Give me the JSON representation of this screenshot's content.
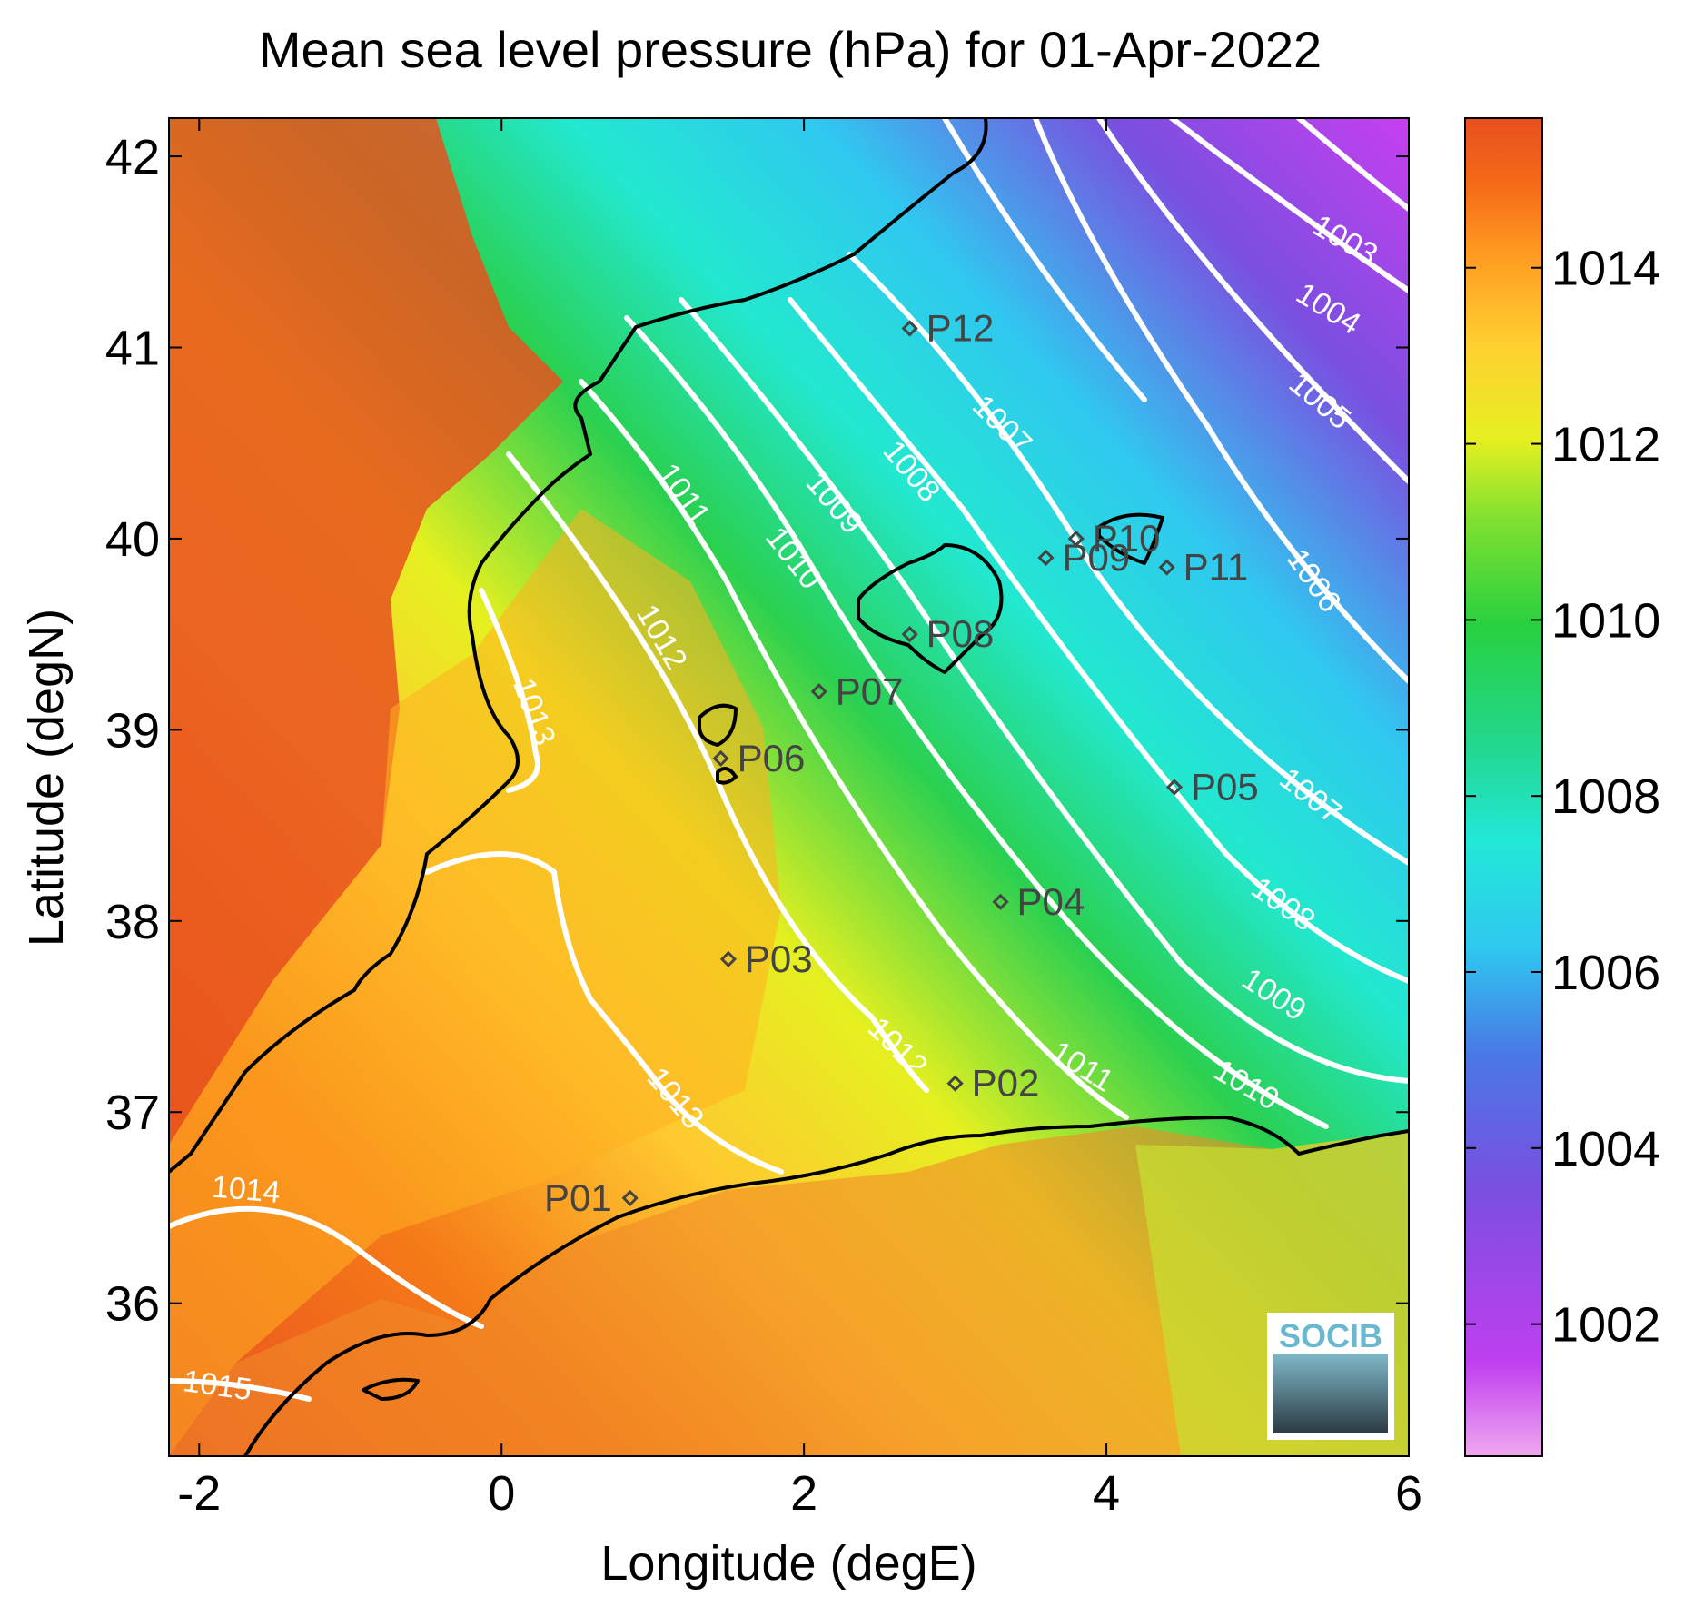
{
  "title": "Mean sea level pressure (hPa) for 01-Apr-2022",
  "xlabel": "Longitude (degE)",
  "ylabel": "Latitude (degN)",
  "logo_text": "SOCIB",
  "x_ticks": [
    -2,
    0,
    2,
    4,
    6
  ],
  "y_ticks": [
    36,
    37,
    38,
    39,
    40,
    41,
    42
  ],
  "colorbar_ticks": [
    1002,
    1004,
    1006,
    1008,
    1010,
    1012,
    1014
  ],
  "xlim": [
    -2.2,
    6.0
  ],
  "ylim": [
    35.2,
    42.2
  ],
  "colorbar_range": [
    1000.5,
    1015.7
  ],
  "colorbar_stops": [
    "#f0a8f0",
    "#c03ff0",
    "#7a4fe0",
    "#4a78e6",
    "#2fc8f0",
    "#22e8d8",
    "#22d890",
    "#28d040",
    "#80e030",
    "#e6f020",
    "#ffd030",
    "#ff9a20",
    "#f56a18",
    "#e85020"
  ],
  "contour_labels": [
    "1003",
    "1004",
    "1005",
    "1006",
    "1007",
    "1008",
    "1009",
    "1010",
    "1011",
    "1012",
    "1013",
    "1014",
    "1015"
  ],
  "stations": [
    {
      "name": "P01",
      "lon": 0.85,
      "lat": 36.55
    },
    {
      "name": "P02",
      "lon": 3.0,
      "lat": 37.15
    },
    {
      "name": "P03",
      "lon": 1.5,
      "lat": 37.8
    },
    {
      "name": "P04",
      "lon": 3.3,
      "lat": 38.1
    },
    {
      "name": "P05",
      "lon": 4.45,
      "lat": 38.7
    },
    {
      "name": "P06",
      "lon": 1.45,
      "lat": 38.85
    },
    {
      "name": "P07",
      "lon": 2.1,
      "lat": 39.2
    },
    {
      "name": "P08",
      "lon": 2.7,
      "lat": 39.5
    },
    {
      "name": "P09",
      "lon": 3.6,
      "lat": 39.9
    },
    {
      "name": "P10",
      "lon": 3.8,
      "lat": 40.0
    },
    {
      "name": "P11",
      "lon": 4.4,
      "lat": 39.85
    },
    {
      "name": "P12",
      "lon": 2.7,
      "lat": 41.1
    }
  ]
}
